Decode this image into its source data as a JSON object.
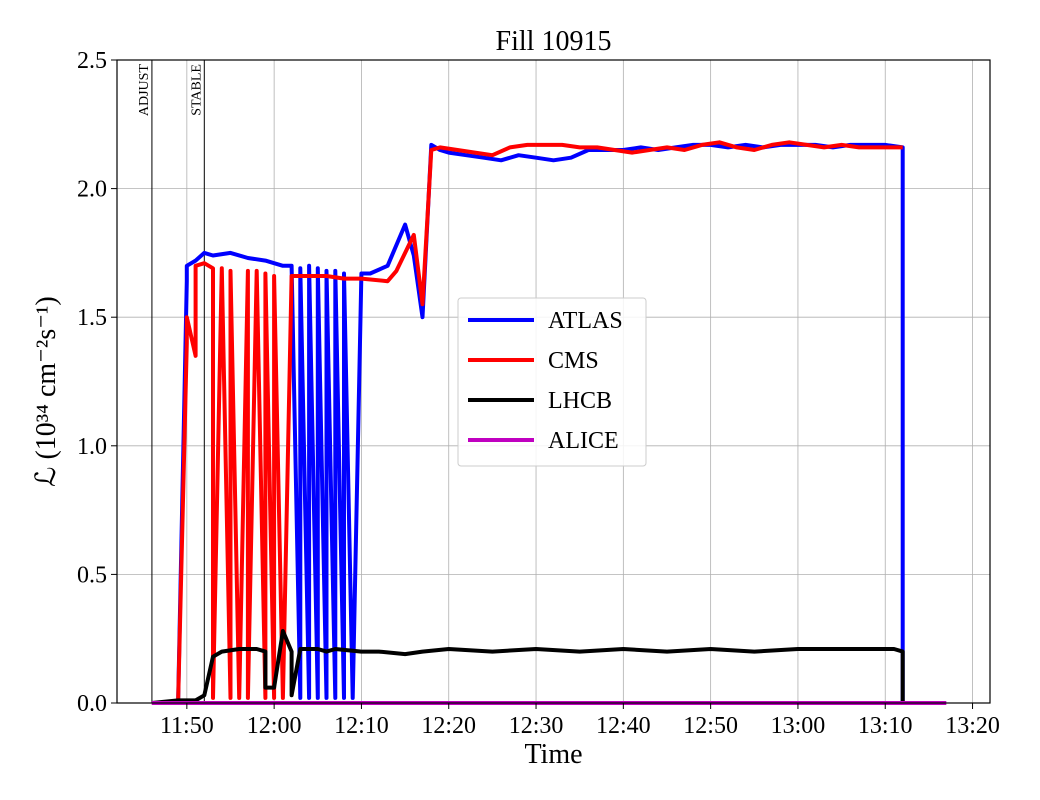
{
  "chart_data": {
    "type": "line",
    "title": "Fill 10915",
    "xlabel": "Time",
    "ylabel": "ℒ (10³⁴ cm⁻²s⁻¹)",
    "xlim": [
      "11:42",
      "13:22"
    ],
    "ylim": [
      0,
      2.5
    ],
    "grid": true,
    "legend_position": "center",
    "x_ticks": [
      "11:50",
      "12:00",
      "12:10",
      "12:20",
      "12:30",
      "12:40",
      "12:50",
      "13:00",
      "13:10",
      "13:20"
    ],
    "y_ticks": [
      "0.0",
      "0.5",
      "1.0",
      "1.5",
      "2.0",
      "2.5"
    ],
    "markers": [
      {
        "label": "ADJUST",
        "time": "11:46"
      },
      {
        "label": "STABLE",
        "time": "11:52"
      }
    ],
    "series": [
      {
        "name": "ATLAS",
        "color": "#0000ff",
        "x": [
          "11:46",
          "11:49",
          "11:50",
          "11:50",
          "11:51",
          "11:52",
          "11:53",
          "11:55",
          "11:57",
          "11:59",
          "12:00",
          "12:01",
          "12:02",
          "12:03",
          "12:03",
          "12:04",
          "12:04",
          "12:05",
          "12:05",
          "12:06",
          "12:06",
          "12:07",
          "12:07",
          "12:08",
          "12:08",
          "12:09",
          "12:10",
          "12:10",
          "12:11",
          "12:13",
          "12:15",
          "12:16",
          "12:17",
          "12:18",
          "12:19",
          "12:20",
          "12:22",
          "12:24",
          "12:26",
          "12:28",
          "12:30",
          "12:32",
          "12:34",
          "12:36",
          "12:38",
          "12:40",
          "12:42",
          "12:44",
          "12:46",
          "12:48",
          "12:50",
          "12:52",
          "12:54",
          "12:56",
          "12:58",
          "13:00",
          "13:02",
          "13:04",
          "13:06",
          "13:08",
          "13:10",
          "13:12",
          "13:12",
          "13:13"
        ],
        "values": [
          0,
          0,
          1.64,
          1.7,
          1.72,
          1.75,
          1.74,
          1.75,
          1.73,
          1.72,
          1.71,
          1.7,
          1.7,
          0.02,
          1.69,
          0.02,
          1.7,
          0.02,
          1.69,
          0.02,
          1.68,
          0.02,
          1.68,
          0.02,
          1.67,
          0.02,
          1.67,
          1.67,
          1.67,
          1.7,
          1.86,
          1.74,
          1.5,
          2.17,
          2.15,
          2.14,
          2.13,
          2.12,
          2.11,
          2.13,
          2.12,
          2.11,
          2.12,
          2.15,
          2.15,
          2.15,
          2.16,
          2.15,
          2.16,
          2.17,
          2.17,
          2.16,
          2.17,
          2.16,
          2.17,
          2.17,
          2.17,
          2.16,
          2.17,
          2.17,
          2.17,
          2.16,
          0,
          0
        ]
      },
      {
        "name": "CMS",
        "color": "#ff0000",
        "x": [
          "11:46",
          "11:49",
          "11:50",
          "11:50",
          "11:51",
          "11:51",
          "11:52",
          "11:53",
          "11:53",
          "11:54",
          "11:55",
          "11:55",
          "11:56",
          "11:57",
          "11:57",
          "11:58",
          "11:59",
          "11:59",
          "12:00",
          "12:00",
          "12:01",
          "12:02",
          "12:04",
          "12:06",
          "12:08",
          "12:10",
          "12:13",
          "12:14",
          "12:16",
          "12:17",
          "12:18",
          "12:19",
          "12:21",
          "12:23",
          "12:25",
          "12:27",
          "12:29",
          "12:31",
          "12:33",
          "12:35",
          "12:37",
          "12:39",
          "12:41",
          "12:43",
          "12:45",
          "12:47",
          "12:49",
          "12:51",
          "12:53",
          "12:55",
          "12:57",
          "12:59",
          "13:01",
          "13:03",
          "13:05",
          "13:07",
          "13:09",
          "13:11",
          "13:12"
        ],
        "values": [
          0,
          0,
          1.4,
          1.5,
          1.35,
          1.7,
          1.71,
          1.69,
          0.02,
          1.69,
          0.02,
          1.68,
          0.02,
          1.68,
          0.02,
          1.68,
          0.02,
          1.67,
          0.02,
          1.66,
          0.02,
          1.66,
          1.66,
          1.66,
          1.65,
          1.65,
          1.64,
          1.68,
          1.82,
          1.55,
          2.15,
          2.16,
          2.15,
          2.14,
          2.13,
          2.16,
          2.17,
          2.17,
          2.17,
          2.16,
          2.16,
          2.15,
          2.14,
          2.15,
          2.16,
          2.15,
          2.17,
          2.18,
          2.16,
          2.15,
          2.17,
          2.18,
          2.17,
          2.16,
          2.17,
          2.16,
          2.16,
          2.16,
          2.16
        ]
      },
      {
        "name": "LHCB",
        "color": "#000000",
        "x": [
          "11:46",
          "11:49",
          "11:51",
          "11:52",
          "11:53",
          "11:54",
          "11:56",
          "11:58",
          "11:59",
          "11:59",
          "12:00",
          "12:00",
          "12:01",
          "12:02",
          "12:02",
          "12:03",
          "12:04",
          "12:05",
          "12:06",
          "12:07",
          "12:10",
          "12:12",
          "12:15",
          "12:17",
          "12:20",
          "12:25",
          "12:30",
          "12:35",
          "12:40",
          "12:45",
          "12:50",
          "12:55",
          "13:00",
          "13:05",
          "13:10",
          "13:11",
          "13:12",
          "13:12",
          "13:15"
        ],
        "values": [
          0,
          0.01,
          0.01,
          0.03,
          0.18,
          0.2,
          0.21,
          0.21,
          0.2,
          0.06,
          0.06,
          0.06,
          0.28,
          0.2,
          0.03,
          0.21,
          0.21,
          0.21,
          0.2,
          0.21,
          0.2,
          0.2,
          0.19,
          0.2,
          0.21,
          0.2,
          0.21,
          0.2,
          0.21,
          0.2,
          0.21,
          0.2,
          0.21,
          0.21,
          0.21,
          0.21,
          0.2,
          0.0,
          0.0
        ]
      },
      {
        "name": "ALICE",
        "color": "#c000c0",
        "x": [
          "11:46",
          "13:17"
        ],
        "values": [
          0,
          0
        ]
      }
    ]
  }
}
